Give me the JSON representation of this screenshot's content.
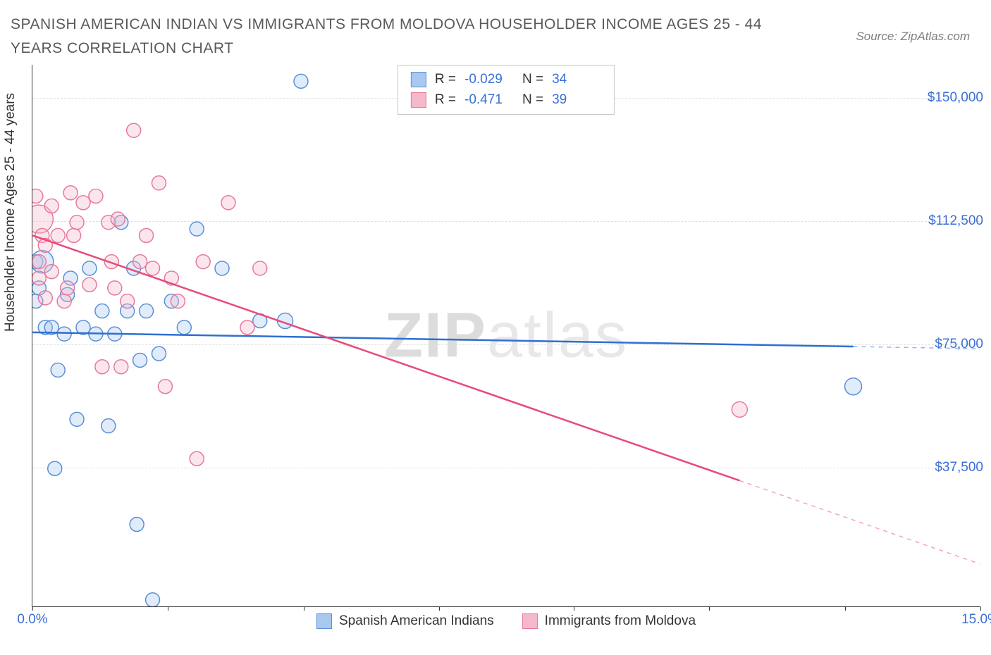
{
  "title": "SPANISH AMERICAN INDIAN VS IMMIGRANTS FROM MOLDOVA HOUSEHOLDER INCOME AGES 25 - 44 YEARS CORRELATION CHART",
  "source": "Source: ZipAtlas.com",
  "watermark_bold": "ZIP",
  "watermark_light": "atlas",
  "chart": {
    "type": "scatter",
    "background_color": "#ffffff",
    "grid_color": "#e0e0e0",
    "axis_color": "#333333",
    "tick_label_color": "#3b6fd6",
    "axis_label_color": "#333333",
    "tick_fontsize": 19,
    "title_fontsize": 21,
    "y_axis_label": "Householder Income Ages 25 - 44 years",
    "xlim": [
      0.0,
      15.0
    ],
    "ylim": [
      -5000,
      160000
    ],
    "y_ticks": [
      {
        "value": 37500,
        "label": "$37,500"
      },
      {
        "value": 75000,
        "label": "$75,000"
      },
      {
        "value": 112500,
        "label": "$112,500"
      },
      {
        "value": 150000,
        "label": "$150,000"
      }
    ],
    "x_ticks": [
      {
        "value": 0.0,
        "label": "0.0%"
      },
      {
        "value": 15.0,
        "label": "15.0%"
      }
    ],
    "x_ticks_minor": [
      2.14,
      4.29,
      6.43,
      8.57,
      10.71,
      12.86
    ],
    "legend_top": [
      {
        "swatch_fill": "#a8c8f0",
        "swatch_stroke": "#5a8fd6",
        "r_label": "R =",
        "r_value": "-0.029",
        "n_label": "N =",
        "n_value": "34"
      },
      {
        "swatch_fill": "#f5b8ca",
        "swatch_stroke": "#e67a9a",
        "r_label": "R =",
        "r_value": "-0.471",
        "n_label": "N =",
        "n_value": "39"
      }
    ],
    "legend_bottom": [
      {
        "swatch_fill": "#a8c8f0",
        "swatch_stroke": "#5a8fd6",
        "label": "Spanish American Indians"
      },
      {
        "swatch_fill": "#f5b8ca",
        "swatch_stroke": "#e67a9a",
        "label": "Immigrants from Moldova"
      }
    ],
    "series": [
      {
        "name": "Spanish American Indians",
        "fill": "#a8c8f0",
        "stroke": "#5a8fd6",
        "marker_radius": 10,
        "regression": {
          "x1": 0.0,
          "y1": 78500,
          "x2": 15.0,
          "y2": 73500,
          "solid_until_x": 13.0,
          "color": "#2f6fd0"
        },
        "points": [
          {
            "x": 0.05,
            "y": 100000,
            "r": 10
          },
          {
            "x": 0.05,
            "y": 88000,
            "r": 10
          },
          {
            "x": 0.1,
            "y": 92000,
            "r": 10
          },
          {
            "x": 0.15,
            "y": 100000,
            "r": 16
          },
          {
            "x": 0.2,
            "y": 80000,
            "r": 10
          },
          {
            "x": 0.3,
            "y": 80000,
            "r": 10
          },
          {
            "x": 0.35,
            "y": 37000,
            "r": 10
          },
          {
            "x": 0.4,
            "y": 67000,
            "r": 10
          },
          {
            "x": 0.5,
            "y": 78000,
            "r": 10
          },
          {
            "x": 0.55,
            "y": 90000,
            "r": 10
          },
          {
            "x": 0.6,
            "y": 95000,
            "r": 10
          },
          {
            "x": 0.8,
            "y": 80000,
            "r": 10
          },
          {
            "x": 0.7,
            "y": 52000,
            "r": 10
          },
          {
            "x": 0.9,
            "y": 98000,
            "r": 10
          },
          {
            "x": 1.0,
            "y": 78000,
            "r": 10
          },
          {
            "x": 1.1,
            "y": 85000,
            "r": 10
          },
          {
            "x": 1.2,
            "y": 50000,
            "r": 10
          },
          {
            "x": 1.3,
            "y": 78000,
            "r": 10
          },
          {
            "x": 1.4,
            "y": 112000,
            "r": 10
          },
          {
            "x": 1.5,
            "y": 85000,
            "r": 10
          },
          {
            "x": 1.6,
            "y": 98000,
            "r": 10
          },
          {
            "x": 1.65,
            "y": 20000,
            "r": 10
          },
          {
            "x": 1.7,
            "y": 70000,
            "r": 10
          },
          {
            "x": 1.8,
            "y": 85000,
            "r": 10
          },
          {
            "x": 1.9,
            "y": -3000,
            "r": 10
          },
          {
            "x": 2.0,
            "y": 72000,
            "r": 10
          },
          {
            "x": 2.2,
            "y": 88000,
            "r": 10
          },
          {
            "x": 2.4,
            "y": 80000,
            "r": 10
          },
          {
            "x": 2.6,
            "y": 110000,
            "r": 10
          },
          {
            "x": 3.0,
            "y": 98000,
            "r": 10
          },
          {
            "x": 3.6,
            "y": 82000,
            "r": 10
          },
          {
            "x": 4.0,
            "y": 82000,
            "r": 11
          },
          {
            "x": 4.25,
            "y": 155000,
            "r": 10
          },
          {
            "x": 13.0,
            "y": 62000,
            "r": 12
          }
        ]
      },
      {
        "name": "Immigrants from Moldova",
        "fill": "#f5b8ca",
        "stroke": "#e67a9a",
        "marker_radius": 10,
        "regression": {
          "x1": 0.0,
          "y1": 108000,
          "x2": 15.0,
          "y2": 8000,
          "solid_until_x": 11.2,
          "color": "#e84a7a"
        },
        "points": [
          {
            "x": 0.05,
            "y": 120000,
            "r": 10
          },
          {
            "x": 0.1,
            "y": 100000,
            "r": 10
          },
          {
            "x": 0.1,
            "y": 95000,
            "r": 10
          },
          {
            "x": 0.1,
            "y": 113000,
            "r": 20
          },
          {
            "x": 0.15,
            "y": 108000,
            "r": 10
          },
          {
            "x": 0.2,
            "y": 89000,
            "r": 10
          },
          {
            "x": 0.2,
            "y": 105000,
            "r": 10
          },
          {
            "x": 0.3,
            "y": 97000,
            "r": 10
          },
          {
            "x": 0.3,
            "y": 117000,
            "r": 10
          },
          {
            "x": 0.4,
            "y": 108000,
            "r": 10
          },
          {
            "x": 0.5,
            "y": 88000,
            "r": 10
          },
          {
            "x": 0.55,
            "y": 92000,
            "r": 10
          },
          {
            "x": 0.6,
            "y": 121000,
            "r": 10
          },
          {
            "x": 0.65,
            "y": 108000,
            "r": 10
          },
          {
            "x": 0.7,
            "y": 112000,
            "r": 10
          },
          {
            "x": 0.8,
            "y": 118000,
            "r": 10
          },
          {
            "x": 0.9,
            "y": 93000,
            "r": 10
          },
          {
            "x": 1.0,
            "y": 120000,
            "r": 10
          },
          {
            "x": 1.1,
            "y": 68000,
            "r": 10
          },
          {
            "x": 1.2,
            "y": 112000,
            "r": 10
          },
          {
            "x": 1.25,
            "y": 100000,
            "r": 10
          },
          {
            "x": 1.3,
            "y": 92000,
            "r": 10
          },
          {
            "x": 1.35,
            "y": 113000,
            "r": 10
          },
          {
            "x": 1.4,
            "y": 68000,
            "r": 10
          },
          {
            "x": 1.5,
            "y": 88000,
            "r": 10
          },
          {
            "x": 1.6,
            "y": 140000,
            "r": 10
          },
          {
            "x": 1.7,
            "y": 100000,
            "r": 10
          },
          {
            "x": 1.8,
            "y": 108000,
            "r": 10
          },
          {
            "x": 1.9,
            "y": 98000,
            "r": 10
          },
          {
            "x": 2.0,
            "y": 124000,
            "r": 10
          },
          {
            "x": 2.1,
            "y": 62000,
            "r": 10
          },
          {
            "x": 2.2,
            "y": 95000,
            "r": 10
          },
          {
            "x": 2.3,
            "y": 88000,
            "r": 10
          },
          {
            "x": 2.6,
            "y": 40000,
            "r": 10
          },
          {
            "x": 2.7,
            "y": 100000,
            "r": 10
          },
          {
            "x": 3.1,
            "y": 118000,
            "r": 10
          },
          {
            "x": 3.4,
            "y": 80000,
            "r": 10
          },
          {
            "x": 3.6,
            "y": 98000,
            "r": 10
          },
          {
            "x": 11.2,
            "y": 55000,
            "r": 11
          }
        ]
      }
    ]
  }
}
